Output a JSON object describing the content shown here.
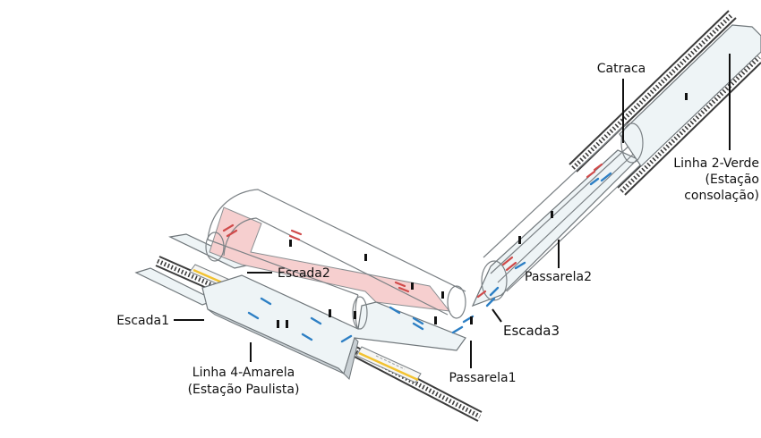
{
  "labels": {
    "catraca": "Catraca",
    "linha2_line1": "Linha 2-Verde",
    "linha2_line2": "(Estação",
    "linha2_line3": "consolação)",
    "escada2": "Escada2",
    "passarela2": "Passarela2",
    "escada1": "Escada1",
    "escada3": "Escada3",
    "linha4_line1": "Linha 4-Amarela",
    "linha4_line2": "(Estação Paulista)",
    "passarela1": "Passarela1"
  },
  "colors": {
    "floor": "#eef4f6",
    "pink_corridor": "#f6cfcf",
    "blue_marker": "#2d7fc4",
    "red_marker": "#d04a4a",
    "train_stripe": "#f2c230"
  }
}
